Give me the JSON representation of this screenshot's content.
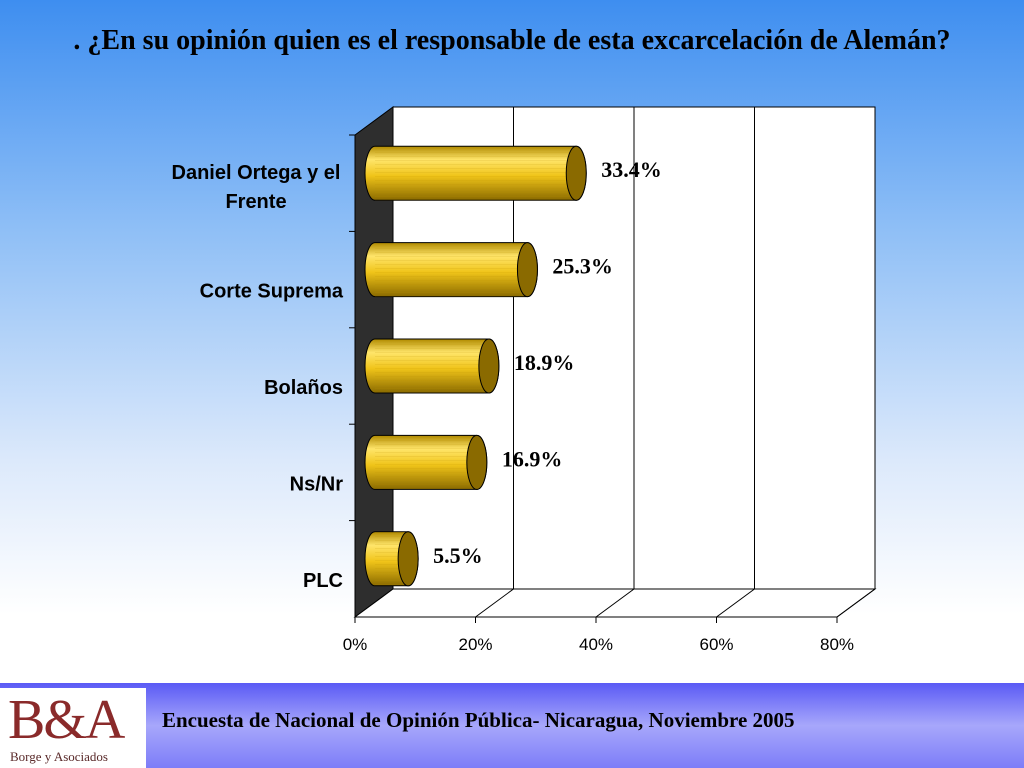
{
  "title": ". ¿En su opinión quien es el responsable de esta excarcelación  de Alemán?",
  "footer": {
    "logo": "B&A",
    "logo_subtitle": "Borge y Asociados",
    "caption": "Encuesta de Nacional de Opinión Pública- Nicaragua, Noviembre 2005"
  },
  "chart_data": {
    "type": "bar",
    "orientation": "horizontal",
    "style": "3d-cylinder",
    "categories": [
      "Daniel Ortega y el Frente",
      "Corte Suprema",
      "Bolaños",
      "Ns/Nr",
      "PLC"
    ],
    "values": [
      33.4,
      25.3,
      18.9,
      16.9,
      5.5
    ],
    "data_labels": [
      "33.4%",
      "25.3%",
      "18.9%",
      "16.9%",
      "5.5%"
    ],
    "x_ticks": [
      "0%",
      "20%",
      "40%",
      "60%",
      "80%"
    ],
    "xlim": [
      0,
      80
    ],
    "colors": {
      "bar": "#f0c419",
      "bar_dark": "#8a6a00",
      "wall": "#2e2e2e"
    },
    "legend": "none"
  }
}
